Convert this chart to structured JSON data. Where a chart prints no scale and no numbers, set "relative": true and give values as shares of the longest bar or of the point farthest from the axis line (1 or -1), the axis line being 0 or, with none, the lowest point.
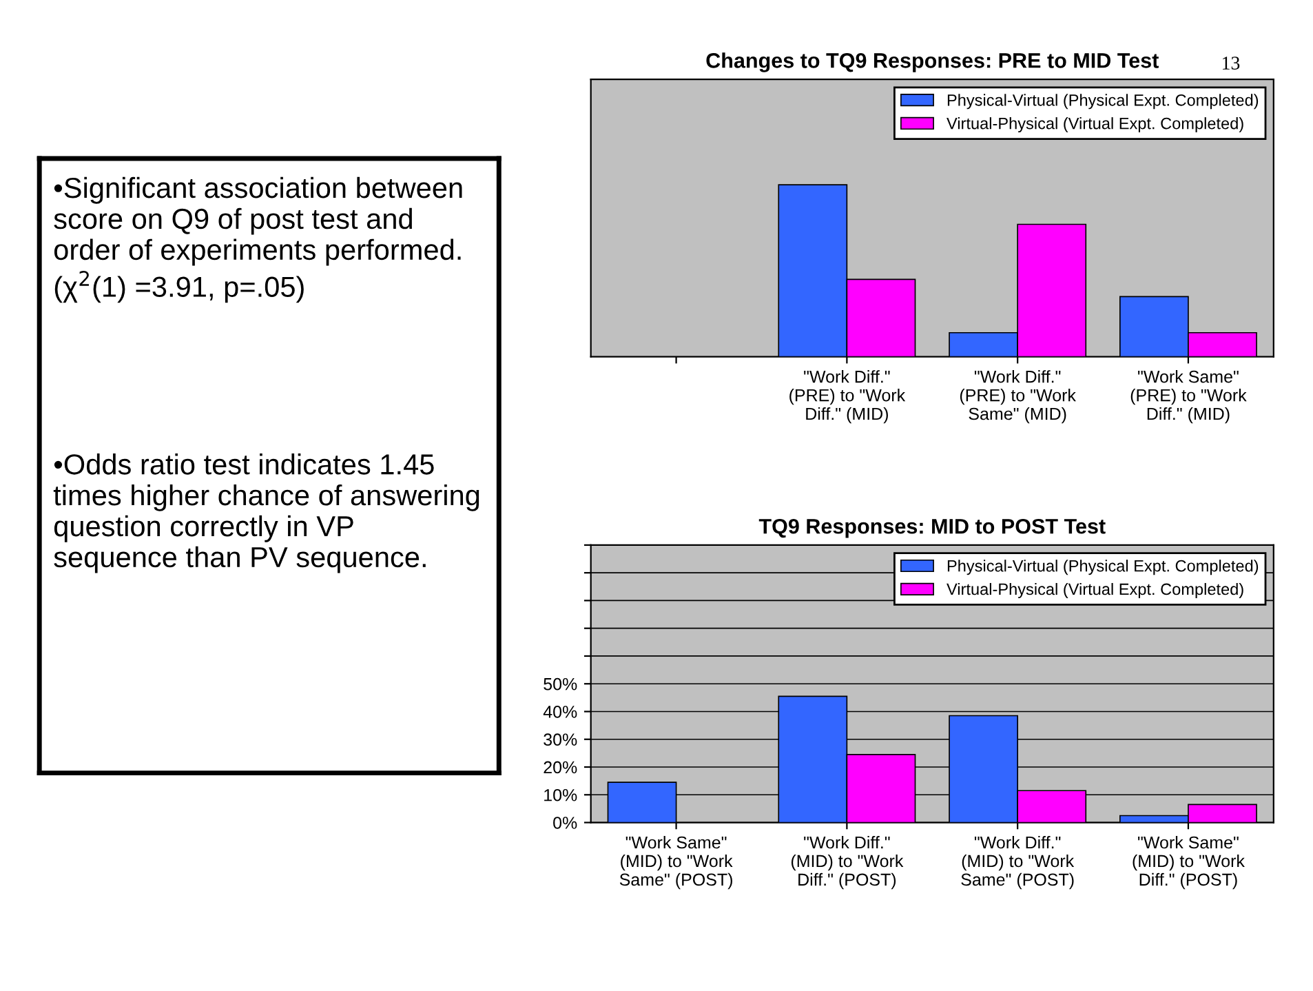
{
  "chart_data": [
    {
      "type": "bar",
      "title": "Changes to TQ9 Responses: PRE to MID Test",
      "relative": true,
      "legend": "top right",
      "categories": [
        null,
        "\"Work Diff.\" (PRE) to \"Work Diff.\" (MID)",
        "\"Work Diff.\" (PRE) to \"Work Same\" (MID)",
        "\"Work Same\" (PRE) to \"Work Diff.\" (MID)"
      ],
      "series": [
        {
          "name": "Physical-Virtual (Physical Expt. Completed)",
          "color": "#3366ff",
          "values": [
            null,
            1.0,
            0.14,
            0.35
          ]
        },
        {
          "name": "Virtual-Physical (Virtual Expt. Completed)",
          "color": "#ff00ff",
          "values": [
            null,
            0.45,
            0.77,
            0.14
          ]
        }
      ]
    },
    {
      "type": "bar",
      "title": "TQ9 Responses: MID to POST Test",
      "legend": "top right",
      "grid": "y",
      "categories": [
        "\"Work Same\" (MID) to \"Work Same\" (POST)",
        "\"Work Diff.\" (MID) to \"Work Diff.\" (POST)",
        "\"Work Diff.\" (MID) to \"Work Same\" (POST)",
        "\"Work Same\" (MID) to \"Work Diff.\" (POST)"
      ],
      "ylim": [
        0,
        100
      ],
      "yticks": [
        {
          "value": 0,
          "label": "0%"
        },
        {
          "value": 10,
          "label": "10%"
        },
        {
          "value": 20,
          "label": "20%"
        },
        {
          "value": 30,
          "label": "30%"
        },
        {
          "value": 40,
          "label": "40%"
        },
        {
          "value": 50,
          "label": "50%"
        },
        {
          "value": 60,
          "label": null
        },
        {
          "value": 70,
          "label": null
        },
        {
          "value": 80,
          "label": null
        },
        {
          "value": 90,
          "label": null
        },
        {
          "value": 100,
          "label": null
        }
      ],
      "series": [
        {
          "name": "Physical-Virtual (Physical Expt. Completed)",
          "color": "#3366ff",
          "values": [
            14.5,
            45.5,
            38.5,
            2.5
          ]
        },
        {
          "name": "Virtual-Physical (Virtual Expt. Completed)",
          "color": "#ff00ff",
          "values": [
            null,
            24.5,
            11.5,
            6.5
          ]
        }
      ]
    },
    {
      "type": "other",
      "annotations": [
        "•Significant association between score on Q9 of post test and order of experiments performed. (χ$^{2}$(1) =3.91, p=.05)",
        "•Odds ratio test indicates 1.45 times higher chance of answering question correctly in VP sequence than PV sequence.",
        "13"
      ]
    }
  ]
}
